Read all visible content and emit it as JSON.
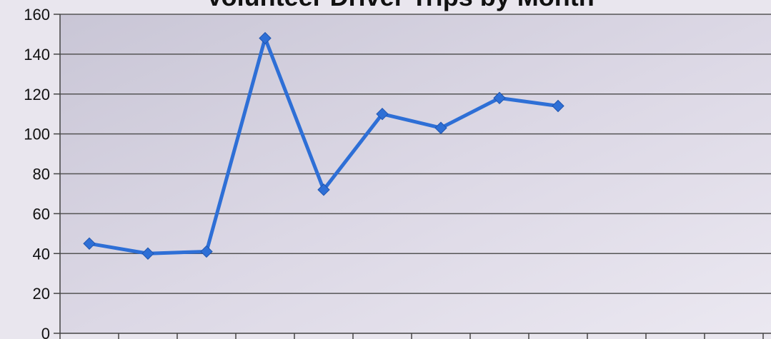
{
  "chart_data": {
    "type": "line",
    "title": "Volunteer Driver Trips by Month",
    "xlabel": "",
    "ylabel": "",
    "ylim": [
      0,
      160
    ],
    "yticks": [
      0,
      20,
      40,
      60,
      80,
      100,
      120,
      140,
      160
    ],
    "grid": true,
    "legend": "none",
    "series": [
      {
        "values": [
          45,
          40,
          41,
          148,
          72,
          110,
          103,
          118,
          114
        ],
        "color": "#2e6fd6"
      }
    ]
  }
}
